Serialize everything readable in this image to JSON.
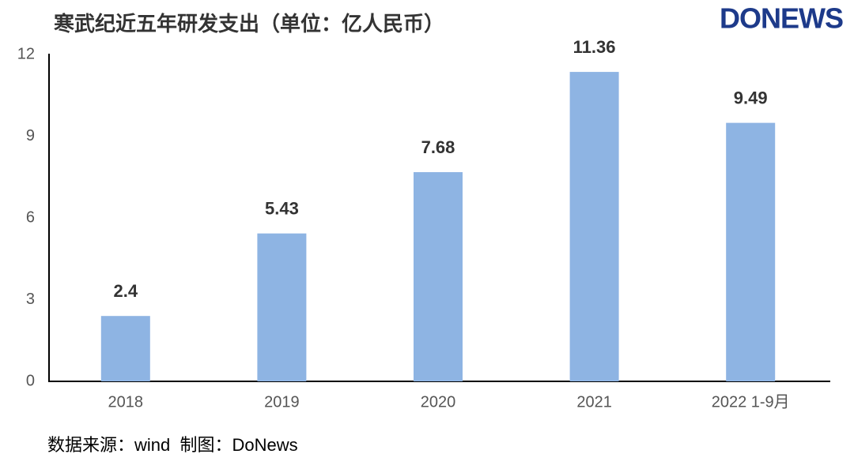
{
  "chart_data": {
    "type": "bar",
    "title": "寒武纪近五年研发支出（单位：亿人民币）",
    "logo": "DONEWS",
    "source": "数据来源：wind  制图：DoNews",
    "categories": [
      "2018",
      "2019",
      "2020",
      "2021",
      "2022 1-9月"
    ],
    "values": [
      2.4,
      5.43,
      7.68,
      11.36,
      9.49
    ],
    "color": "#8eb4e3",
    "ylim": [
      0,
      12
    ],
    "yticks": [
      0,
      3,
      6,
      9,
      12
    ],
    "grid": false
  }
}
